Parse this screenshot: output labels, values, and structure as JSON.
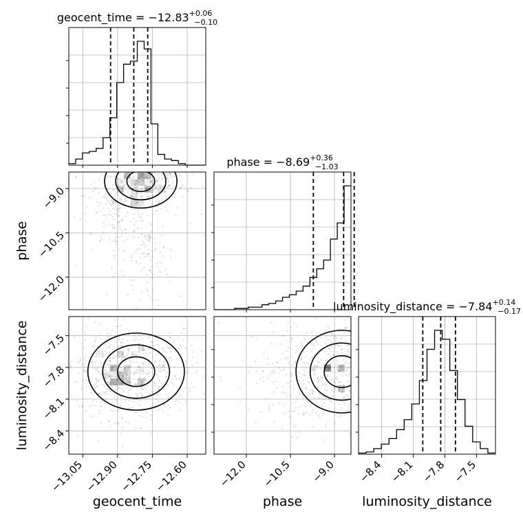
{
  "chart_data": {
    "type": "corner",
    "parameters": [
      "geocent_time",
      "phase",
      "luminosity_distance"
    ],
    "panel_titles": [
      {
        "name": "geocent_time",
        "median": "-12.83",
        "plus": "0.06",
        "minus": "0.10"
      },
      {
        "name": "phase",
        "median": "-8.69",
        "plus": "0.36",
        "minus": "1.03"
      },
      {
        "name": "luminosity_distance",
        "median": "-7.84",
        "plus": "0.14",
        "minus": "0.17"
      }
    ],
    "axis_labels": {
      "x": [
        "geocent_time",
        "phase",
        "luminosity_distance"
      ],
      "y": [
        "phase",
        "luminosity_distance"
      ]
    },
    "ranges": {
      "geocent_time": [
        -13.11,
        -12.52
      ],
      "phase": [
        -13.1,
        -8.44
      ],
      "luminosity_distance": [
        -8.62,
        -7.32
      ]
    },
    "ticks": {
      "geocent_time": [
        "-13.05",
        "-12.90",
        "-12.75",
        "-12.60"
      ],
      "phase": [
        "-12.0",
        "-10.5",
        "-9.0"
      ],
      "luminosity_distance": [
        "-8.4",
        "-8.1",
        "-7.8",
        "-7.5"
      ]
    },
    "quantiles": {
      "geocent_time": [
        -12.93,
        -12.83,
        -12.77
      ],
      "phase": [
        -9.72,
        -8.69,
        -8.33
      ],
      "luminosity_distance": [
        -8.01,
        -7.84,
        -7.7
      ]
    },
    "histograms": {
      "geocent_time": {
        "x_range": [
          -13.11,
          -12.52
        ],
        "counts": [
          1,
          4,
          8,
          9,
          11,
          18,
          31,
          54,
          66,
          68,
          81,
          76,
          27,
          7,
          4,
          3,
          1,
          0,
          0,
          0
        ]
      },
      "phase": {
        "x_range": [
          -13.1,
          -8.44
        ],
        "counts": [
          0,
          0,
          0,
          1,
          1,
          2,
          2,
          4,
          5,
          7,
          10,
          12,
          15,
          19,
          26,
          33,
          40,
          57,
          70,
          100
        ]
      },
      "luminosity_distance": {
        "x_range": [
          -8.62,
          -7.32
        ],
        "counts": [
          1,
          2,
          5,
          9,
          14,
          22,
          31,
          45,
          66,
          94,
          111,
          103,
          75,
          49,
          25,
          11,
          5,
          1
        ]
      }
    },
    "grid": true
  }
}
